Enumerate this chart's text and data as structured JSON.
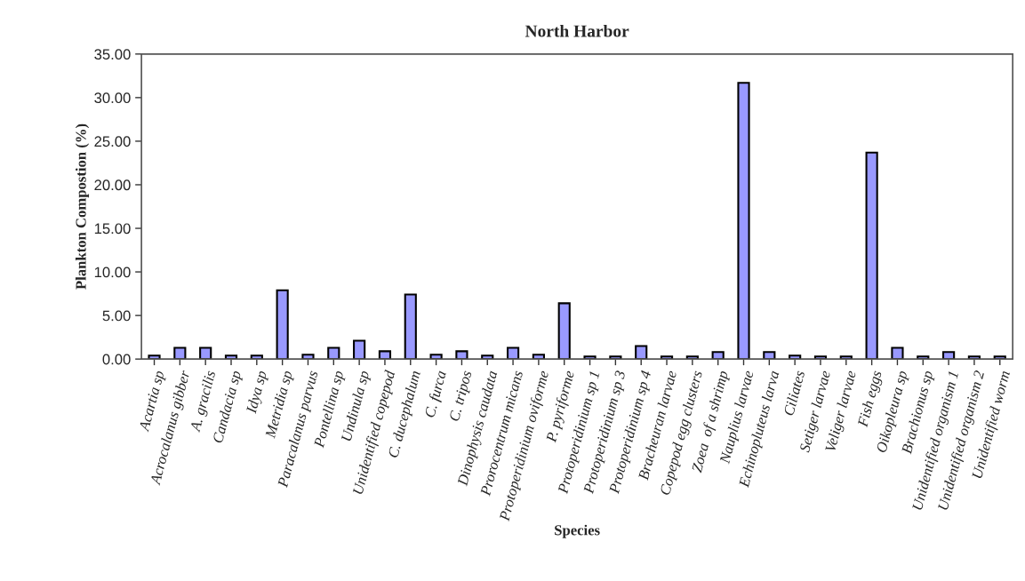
{
  "chart_data": {
    "type": "bar",
    "title": "North Harbor",
    "xlabel": "Species",
    "ylabel": "Plankton Compostion (%)",
    "categories": [
      "Acartia sp",
      "Acrocalanus gibber",
      "A. gracilis",
      "Candacia sp",
      "Idya sp",
      "Metridia sp",
      "Paracalanus parvus",
      "Pontellina sp",
      "Undinula sp",
      "Unidentified copepod",
      "C. ducephalum",
      "C. furca",
      "C. tripos",
      "Dinophysis caudata",
      "Prorocentrum micans",
      "Protoperidinium oviforme",
      "P. pyriforme",
      "Protoperidinium sp 1",
      "Protoperidinium sp 3",
      "Protoperidinium sp 4",
      "Bracheuran larvae",
      "Copepod egg clusters",
      "Zoea  of a shrimp",
      "Nauplius larvae",
      "Echinopluteus larva",
      "Ciliates",
      "Setiger larvae",
      "Veliger larvae",
      "Fish eggs",
      "Oikopleura sp",
      "Brachionus sp",
      "Unidentified organism 1",
      "Unidentified organism 2",
      "Unidentified worm"
    ],
    "values": [
      0.4,
      1.3,
      1.3,
      0.4,
      0.4,
      7.9,
      0.5,
      1.3,
      2.1,
      0.9,
      7.4,
      0.5,
      0.9,
      0.4,
      1.3,
      0.5,
      6.4,
      0.3,
      0.3,
      1.5,
      0.3,
      0.3,
      0.8,
      31.7,
      0.8,
      0.4,
      0.3,
      0.3,
      23.7,
      1.3,
      0.3,
      0.8,
      0.3,
      0.3
    ],
    "color": "#9999ff",
    "ylim": [
      0,
      35
    ],
    "yticks": [
      {
        "value": 0,
        "label": "0.00"
      },
      {
        "value": 5,
        "label": "5.00"
      },
      {
        "value": 10,
        "label": "10.00"
      },
      {
        "value": 15,
        "label": "15.00"
      },
      {
        "value": 20,
        "label": "20.00"
      },
      {
        "value": 25,
        "label": "25.00"
      },
      {
        "value": 30,
        "label": "30.00"
      },
      {
        "value": 35,
        "label": "35.00"
      }
    ],
    "grid": false,
    "legend": false
  }
}
